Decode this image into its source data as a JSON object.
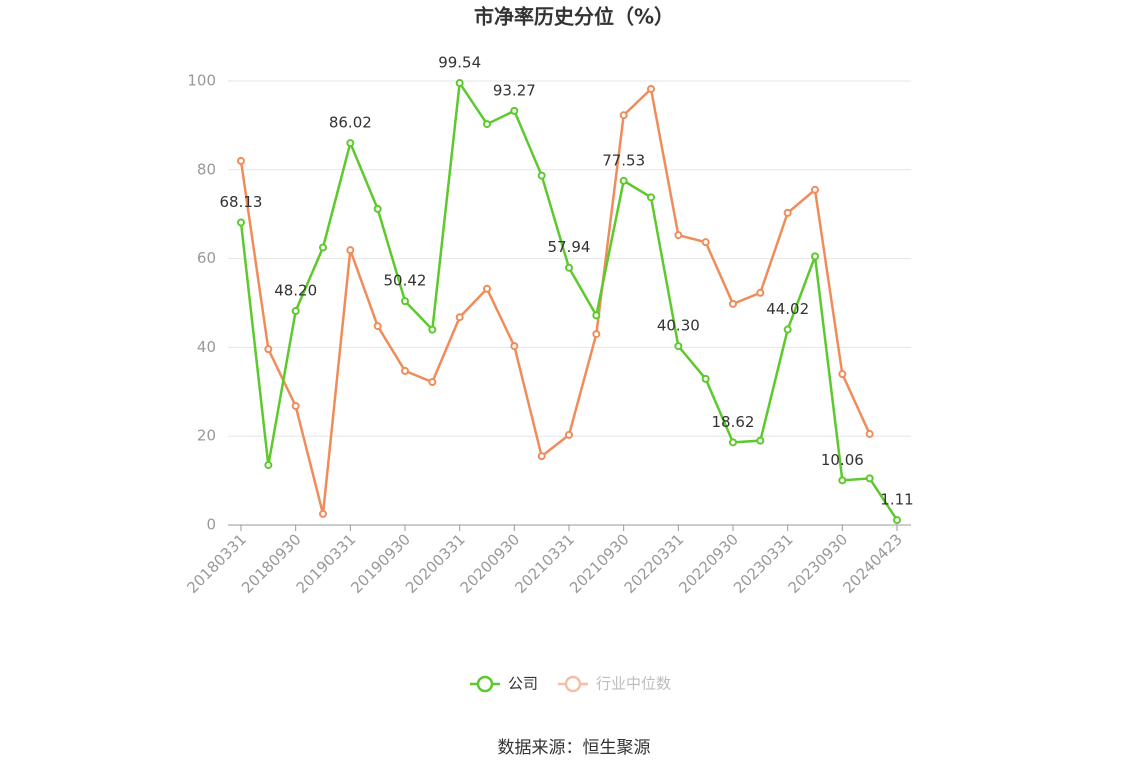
{
  "chart_data": {
    "type": "line",
    "title": "市净率历史分位（%）",
    "categories": [
      "20180331",
      null,
      "20180930",
      null,
      "20190331",
      null,
      "20190930",
      null,
      "20200331",
      null,
      "20200930",
      null,
      "20210331",
      null,
      "20210930",
      null,
      "20220331",
      null,
      "20220930",
      null,
      "20230331",
      null,
      "20230930",
      null,
      "20240423"
    ],
    "series": [
      {
        "name": "公司",
        "color": "#5cc92c",
        "values": [
          68.13,
          13.5,
          48.2,
          62.5,
          86.02,
          71.2,
          50.42,
          44,
          99.54,
          90.3,
          93.27,
          78.7,
          57.94,
          47.2,
          77.53,
          73.8,
          40.3,
          32.9,
          18.62,
          19.0,
          44.02,
          60.5,
          10.06,
          10.5,
          1.11
        ],
        "value_labels": [
          "68.13",
          null,
          "48.20",
          null,
          "86.02",
          null,
          "50.42",
          null,
          "99.54",
          null,
          "93.27",
          null,
          "57.94",
          null,
          "77.53",
          null,
          "40.30",
          null,
          "18.62",
          null,
          "44.02",
          null,
          "10.06",
          null,
          "1.11"
        ]
      },
      {
        "name": "行业中位数",
        "color": "#f08c5a",
        "values": [
          82,
          39.6,
          26.8,
          2.5,
          61.9,
          44.8,
          34.7,
          32.2,
          46.8,
          53.2,
          40.3,
          15.5,
          20.3,
          43,
          92.3,
          98.2,
          65.3,
          63.7,
          49.8,
          52.3,
          70.3,
          75.5,
          34,
          20.5,
          null
        ]
      }
    ],
    "ylim": [
      0,
      100
    ],
    "yticks": [
      0,
      20,
      40,
      60,
      80,
      100
    ],
    "grid": true,
    "source": "数据来源：恒生聚源"
  }
}
